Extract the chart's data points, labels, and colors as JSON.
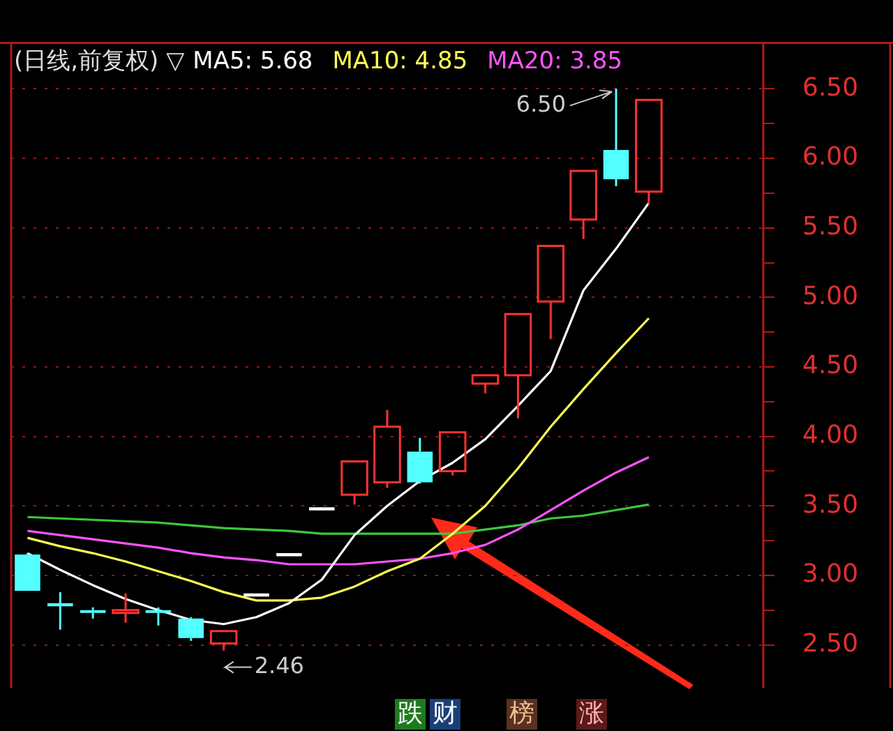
{
  "chart_data": {
    "type": "candlestick",
    "title": "(日线,前复权) ▽",
    "categories": [
      null,
      null,
      null,
      null,
      null,
      null,
      null,
      null,
      null,
      null,
      null,
      null,
      null,
      null,
      null,
      null,
      null,
      null,
      null,
      null,
      null,
      null,
      null
    ],
    "ohlc": [
      [
        3.15,
        3.16,
        2.89,
        2.89
      ],
      [
        2.79,
        2.88,
        2.61,
        2.78
      ],
      [
        2.75,
        2.77,
        2.69,
        2.73
      ],
      [
        2.73,
        2.87,
        2.66,
        2.75
      ],
      [
        2.75,
        2.77,
        2.64,
        2.73
      ],
      [
        2.69,
        2.7,
        2.53,
        2.55
      ],
      [
        2.51,
        2.6,
        2.46,
        2.6
      ],
      [
        2.86,
        2.86,
        2.86,
        2.86
      ],
      [
        3.15,
        3.15,
        3.15,
        3.15
      ],
      [
        3.48,
        3.48,
        3.48,
        3.48
      ],
      [
        3.58,
        3.82,
        3.51,
        3.82
      ],
      [
        3.67,
        4.19,
        3.63,
        4.07
      ],
      [
        3.89,
        3.99,
        3.66,
        3.67
      ],
      [
        3.75,
        4.03,
        3.72,
        4.03
      ],
      [
        4.38,
        4.44,
        4.31,
        4.44
      ],
      [
        4.44,
        4.88,
        4.13,
        4.88
      ],
      [
        4.97,
        5.37,
        4.7,
        5.37
      ],
      [
        5.56,
        5.91,
        5.42,
        5.91
      ],
      [
        6.06,
        6.5,
        5.8,
        5.85
      ],
      [
        5.76,
        6.42,
        5.67,
        6.42
      ],
      null,
      null,
      null
    ],
    "colors": [
      "#54ffff",
      "#54ffff",
      "#54ffff",
      "#ff3232",
      "#54ffff",
      "#54ffff",
      "#ff3232",
      "#ffffff",
      "#ffffff",
      "#ffffff",
      "#ff3232",
      "#ff3232",
      "#54ffff",
      "#ff3232",
      "#ff3232",
      "#ff3232",
      "#ff3232",
      "#ff3232",
      "#54ffff",
      "#ff3232",
      null,
      null,
      null
    ],
    "series": [
      {
        "name": "MA5: 5.68",
        "type": "line",
        "color": "#ffffff",
        "values": [
          3.16,
          3.04,
          2.93,
          2.83,
          2.75,
          2.68,
          2.65,
          2.7,
          2.8,
          2.97,
          3.29,
          3.5,
          3.68,
          3.81,
          3.98,
          4.22,
          4.47,
          5.05,
          5.35,
          5.68,
          null,
          null,
          null
        ]
      },
      {
        "name": "MA10: 4.85",
        "type": "line",
        "color": "#ffff54",
        "values": [
          3.27,
          3.21,
          3.16,
          3.1,
          3.03,
          2.96,
          2.88,
          2.82,
          2.82,
          2.84,
          2.92,
          3.03,
          3.12,
          3.3,
          3.5,
          3.77,
          4.07,
          4.34,
          4.6,
          4.85,
          null,
          null,
          null
        ]
      },
      {
        "name": "MA20: 3.85",
        "type": "line",
        "color": "#ff54ff",
        "values": [
          3.32,
          3.29,
          3.26,
          3.23,
          3.2,
          3.16,
          3.13,
          3.11,
          3.08,
          3.08,
          3.08,
          3.1,
          3.12,
          3.16,
          3.22,
          3.33,
          3.47,
          3.61,
          3.74,
          3.85,
          null,
          null,
          null
        ]
      },
      {
        "type": "line",
        "color": "#3cc83c",
        "values": [
          3.42,
          3.41,
          3.4,
          3.39,
          3.38,
          3.36,
          3.34,
          3.33,
          3.32,
          3.3,
          3.3,
          3.3,
          3.3,
          3.3,
          3.33,
          3.36,
          3.41,
          3.43,
          3.47,
          3.51,
          null,
          null,
          null
        ]
      }
    ],
    "ylim": [
      2.19,
      6.83
    ],
    "yticks": [
      {
        "value": 2.5,
        "label": "2.50"
      },
      {
        "value": 2.75,
        "label": null
      },
      {
        "value": 3,
        "label": "3.00"
      },
      {
        "value": 3.25,
        "label": null
      },
      {
        "value": 3.5,
        "label": "3.50"
      },
      {
        "value": 3.75,
        "label": null
      },
      {
        "value": 4,
        "label": "4.00"
      },
      {
        "value": 4.25,
        "label": null
      },
      {
        "value": 4.5,
        "label": "4.50"
      },
      {
        "value": 4.75,
        "label": null
      },
      {
        "value": 5,
        "label": "5.00"
      },
      {
        "value": 5.25,
        "label": null
      },
      {
        "value": 5.5,
        "label": "5.50"
      },
      {
        "value": 5.75,
        "label": null
      },
      {
        "value": 6,
        "label": "6.00"
      },
      {
        "value": 6.25,
        "label": null
      },
      {
        "value": 6.5,
        "label": "6.50"
      }
    ],
    "grid": "y",
    "tick_labels": "y",
    "annotations": [
      "6.50",
      "2.46",
      "跌",
      "财",
      "榜",
      "涨"
    ]
  }
}
